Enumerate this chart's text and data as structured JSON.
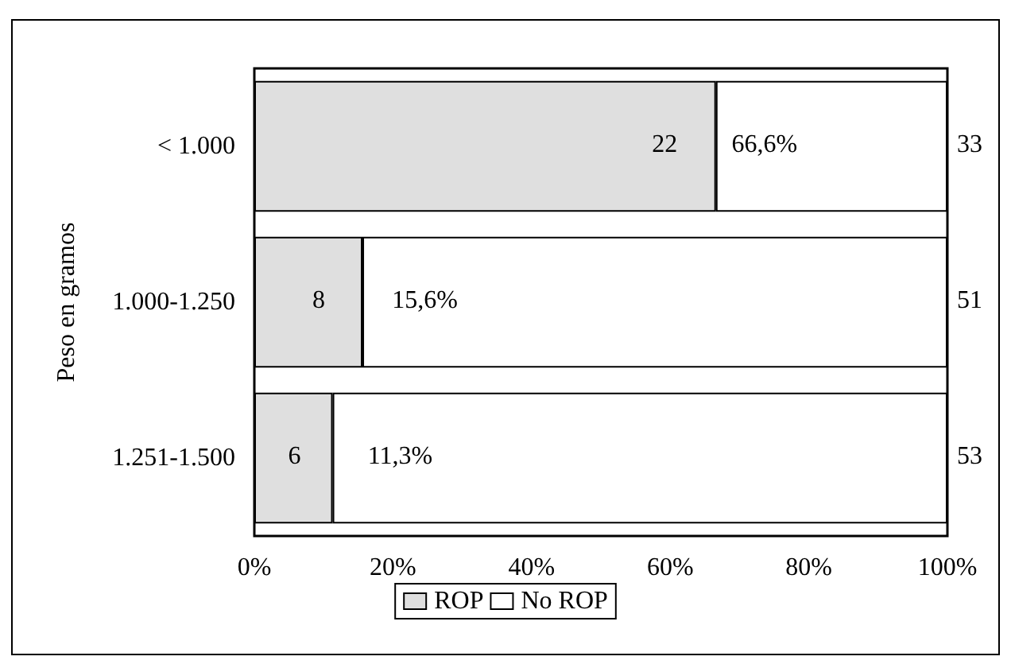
{
  "chart_data": {
    "type": "bar",
    "orientation": "horizontal",
    "stacked": true,
    "ylabel": "Peso en gramos",
    "categories": [
      "< 1.000",
      "1.000-1.250",
      "1.251-1.500"
    ],
    "series": [
      {
        "name": "ROP",
        "color": "#dfdfdf",
        "values": [
          66.6,
          15.6,
          11.3
        ]
      },
      {
        "name": "No ROP",
        "color": "#ffffff",
        "values": [
          33.4,
          84.4,
          88.7
        ]
      }
    ],
    "xlim": [
      0,
      100
    ],
    "xticks": [
      {
        "value": 0,
        "label": "0%"
      },
      {
        "value": 20,
        "label": "20%"
      },
      {
        "value": 40,
        "label": "40%"
      },
      {
        "value": 60,
        "label": "60%"
      },
      {
        "value": 80,
        "label": "80%"
      },
      {
        "value": 100,
        "label": "100%"
      }
    ],
    "annotations": [
      {
        "text": "22",
        "x": 56,
        "y": "< 1.000"
      },
      {
        "text": "66,6%",
        "x": 67.5,
        "y": "< 1.000"
      },
      {
        "text": "33",
        "x": 100,
        "y": "< 1.000"
      },
      {
        "text": "8",
        "x": 7,
        "y": "1.000-1.250"
      },
      {
        "text": "15,6%",
        "x": 18.5,
        "y": "1.000-1.250"
      },
      {
        "text": "51",
        "x": 100,
        "y": "1.000-1.250"
      },
      {
        "text": "6",
        "x": 3.5,
        "y": "1.251-1.500"
      },
      {
        "text": "11,3%",
        "x": 15,
        "y": "1.251-1.500"
      },
      {
        "text": "53",
        "x": 100,
        "y": "1.251-1.500"
      }
    ],
    "legend": "bottom",
    "grid": false
  }
}
